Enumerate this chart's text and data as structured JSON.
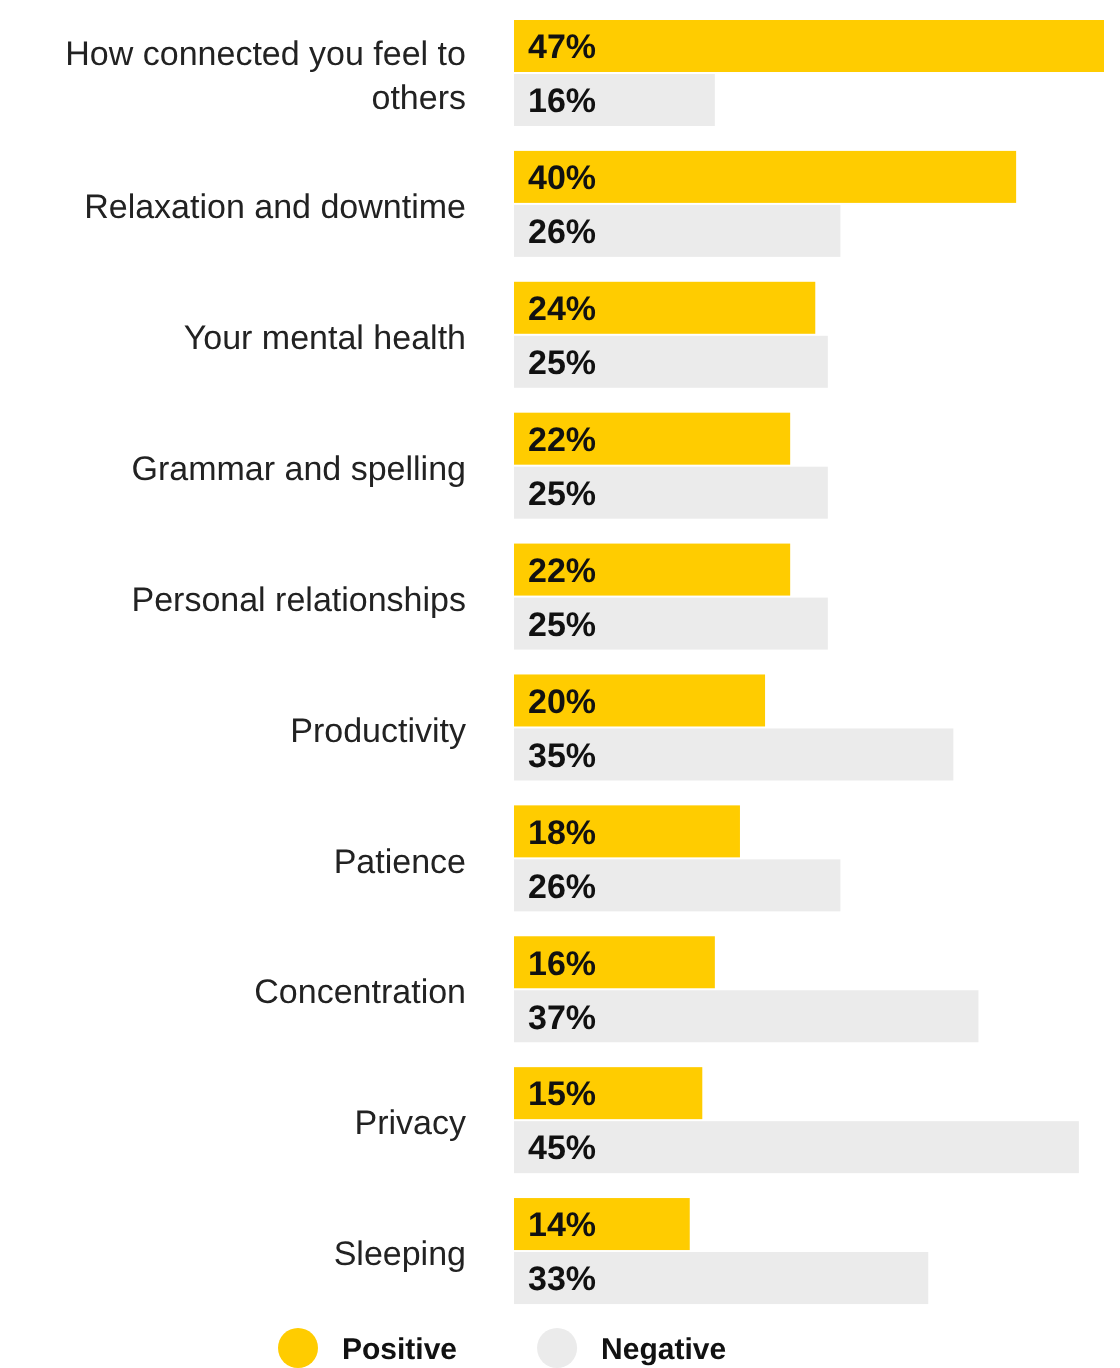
{
  "chart_data": {
    "type": "bar",
    "orientation": "horizontal",
    "categories": [
      "How connected you feel to others",
      "Relaxation and downtime",
      "Your mental health",
      "Grammar and spelling",
      "Personal relationships",
      "Productivity",
      "Patience",
      "Concentration",
      "Privacy",
      "Sleeping"
    ],
    "series": [
      {
        "name": "Positive",
        "color": "#ffcc00",
        "values": [
          47,
          40,
          24,
          22,
          22,
          20,
          18,
          16,
          15,
          14
        ],
        "value_labels": [
          "47%",
          "40%",
          "24%",
          "22%",
          "22%",
          "20%",
          "18%",
          "16%",
          "15%",
          "14%"
        ]
      },
      {
        "name": "Negative",
        "color": "#ebebeb",
        "values": [
          16,
          26,
          25,
          25,
          25,
          35,
          26,
          37,
          45,
          33
        ],
        "value_labels": [
          "16%",
          "26%",
          "25%",
          "25%",
          "25%",
          "35%",
          "26%",
          "37%",
          "45%",
          "33%"
        ]
      }
    ],
    "legend": "bottom"
  }
}
